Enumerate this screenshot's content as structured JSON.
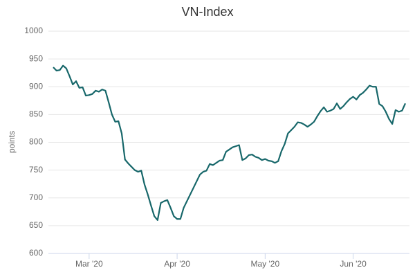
{
  "chart_data": {
    "type": "line",
    "title": "VN-Index",
    "y_label": "points",
    "categories": [
      null,
      null,
      null,
      null,
      null,
      null,
      null,
      null,
      null,
      null,
      null,
      "Mar '20",
      null,
      null,
      null,
      null,
      null,
      null,
      null,
      null,
      null,
      null,
      null,
      null,
      null,
      null,
      null,
      null,
      null,
      null,
      null,
      null,
      null,
      null,
      null,
      null,
      null,
      null,
      "Apr '20",
      null,
      null,
      null,
      null,
      null,
      null,
      null,
      null,
      null,
      null,
      null,
      null,
      null,
      null,
      null,
      null,
      null,
      null,
      null,
      null,
      null,
      null,
      null,
      null,
      null,
      null,
      "May '20",
      null,
      null,
      null,
      null,
      null,
      null,
      null,
      null,
      null,
      null,
      null,
      null,
      null,
      null,
      null,
      null,
      null,
      null,
      null,
      null,
      null,
      null,
      null,
      null,
      null,
      null,
      "Jun '20",
      null,
      null,
      null,
      null,
      null,
      null,
      null,
      null,
      null,
      null,
      null,
      null,
      null,
      null,
      null,
      null
    ],
    "series": [
      {
        "name": "VN-Index",
        "color": "#17676a",
        "values": [
          935,
          929,
          930,
          938,
          933,
          919,
          904,
          910,
          898,
          899,
          884,
          885,
          887,
          893,
          891,
          895,
          893,
          872,
          850,
          837,
          838,
          816,
          769,
          762,
          756,
          750,
          747,
          749,
          724,
          706,
          686,
          667,
          660,
          691,
          694,
          696,
          682,
          667,
          662,
          662,
          682,
          694,
          706,
          718,
          730,
          742,
          747,
          749,
          761,
          759,
          763,
          767,
          768,
          783,
          787,
          791,
          793,
          795,
          768,
          771,
          777,
          778,
          774,
          772,
          768,
          770,
          767,
          766,
          763,
          766,
          784,
          797,
          816,
          822,
          828,
          836,
          835,
          832,
          828,
          832,
          837,
          847,
          856,
          863,
          855,
          857,
          860,
          870,
          860,
          865,
          872,
          878,
          882,
          877,
          885,
          889,
          895,
          902,
          900,
          900,
          869,
          865,
          855,
          842,
          833,
          858,
          855,
          857,
          870
        ]
      }
    ],
    "ylim": [
      600,
      1000
    ],
    "yticks": [
      600,
      650,
      700,
      750,
      800,
      850,
      900,
      950,
      1000
    ],
    "grid": true
  }
}
